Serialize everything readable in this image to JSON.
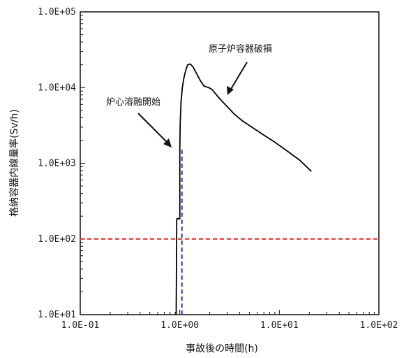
{
  "chart_data": {
    "type": "line",
    "xlabel": "事故後の時間(h)",
    "ylabel": "格納容器内線量率(Sv/h)",
    "x_scale": "log",
    "y_scale": "log",
    "xlim": [
      0.1,
      100
    ],
    "ylim": [
      10,
      100000
    ],
    "x_ticks": [
      "1.0E-01",
      "1.0E+00",
      "1.0E+01",
      "1.0E+02"
    ],
    "y_ticks": [
      "1.0E+01",
      "1.0E+02",
      "1.0E+03",
      "1.0E+04",
      "1.0E+05"
    ],
    "grid": false,
    "series": [
      {
        "color": "#000000",
        "style": "solid",
        "x": [
          0.92,
          0.93,
          0.93,
          0.94,
          0.96,
          0.98,
          1.0,
          1.0,
          1.01,
          1.03,
          1.06,
          1.1,
          1.15,
          1.2,
          1.27,
          1.35,
          1.45,
          1.6,
          1.75,
          1.95,
          2.1,
          2.3,
          2.6,
          3.0,
          3.5,
          4.3,
          5.5,
          7.0,
          9.0,
          12.0,
          16.0,
          21.0
        ],
        "y": [
          10,
          120,
          180,
          185,
          185,
          185,
          185,
          1500,
          3500,
          6500,
          10000,
          13500,
          17000,
          20000,
          20500,
          19000,
          16000,
          12500,
          10500,
          10000,
          9500,
          8200,
          6800,
          5600,
          4500,
          3600,
          2900,
          2350,
          1900,
          1450,
          1100,
          780
        ]
      },
      {
        "color": "#2b35c9",
        "style": "dashed",
        "x": [
          1.05,
          1.05
        ],
        "y": [
          10,
          1550
        ]
      },
      {
        "color": "#e8261e",
        "style": "dashed",
        "x": [
          0.1,
          100
        ],
        "y": [
          100,
          100
        ]
      }
    ],
    "annotations": [
      {
        "text": "炉心溶融開始"
      },
      {
        "text": "原子炉容器破損"
      }
    ]
  }
}
